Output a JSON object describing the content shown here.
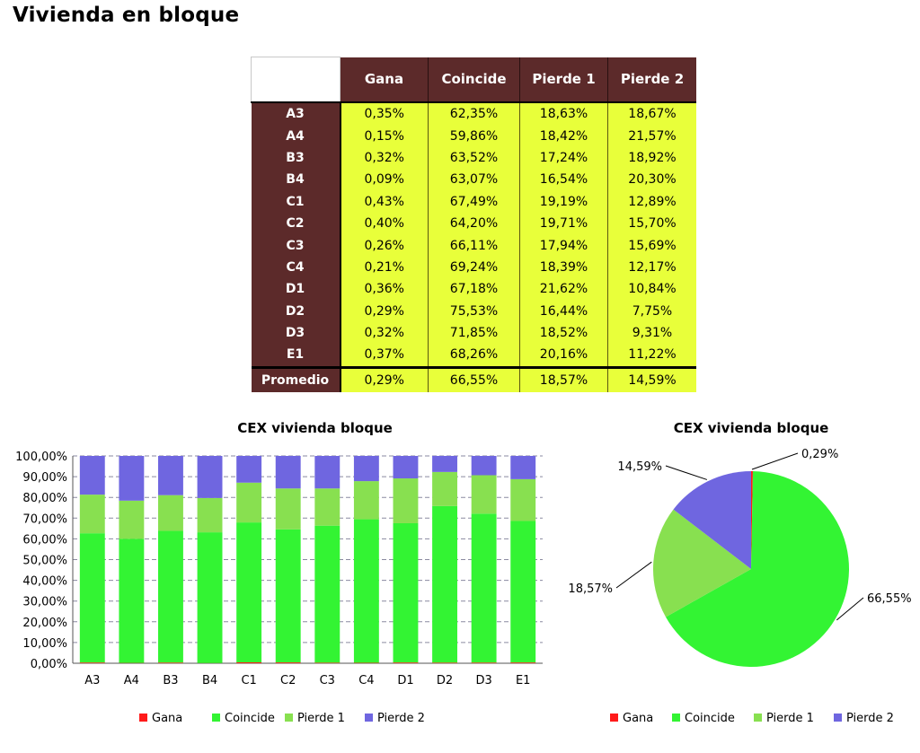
{
  "page_title": "Vivienda en bloque",
  "table": {
    "corner": "",
    "columns": [
      "Gana",
      "Coincide",
      "Pierde 1",
      "Pierde 2"
    ],
    "rows": [
      {
        "label": "A3",
        "cells": [
          "0,35%",
          "62,35%",
          "18,63%",
          "18,67%"
        ]
      },
      {
        "label": "A4",
        "cells": [
          "0,15%",
          "59,86%",
          "18,42%",
          "21,57%"
        ]
      },
      {
        "label": "B3",
        "cells": [
          "0,32%",
          "63,52%",
          "17,24%",
          "18,92%"
        ]
      },
      {
        "label": "B4",
        "cells": [
          "0,09%",
          "63,07%",
          "16,54%",
          "20,30%"
        ]
      },
      {
        "label": "C1",
        "cells": [
          "0,43%",
          "67,49%",
          "19,19%",
          "12,89%"
        ]
      },
      {
        "label": "C2",
        "cells": [
          "0,40%",
          "64,20%",
          "19,71%",
          "15,70%"
        ]
      },
      {
        "label": "C3",
        "cells": [
          "0,26%",
          "66,11%",
          "17,94%",
          "15,69%"
        ]
      },
      {
        "label": "C4",
        "cells": [
          "0,21%",
          "69,24%",
          "18,39%",
          "12,17%"
        ]
      },
      {
        "label": "D1",
        "cells": [
          "0,36%",
          "67,18%",
          "21,62%",
          "10,84%"
        ]
      },
      {
        "label": "D2",
        "cells": [
          "0,29%",
          "75,53%",
          "16,44%",
          "7,75%"
        ]
      },
      {
        "label": "D3",
        "cells": [
          "0,32%",
          "71,85%",
          "18,52%",
          "9,31%"
        ]
      },
      {
        "label": "E1",
        "cells": [
          "0,37%",
          "68,26%",
          "20,16%",
          "11,22%"
        ]
      }
    ],
    "footer": {
      "label": "Promedio",
      "cells": [
        "0,29%",
        "66,55%",
        "18,57%",
        "14,59%"
      ]
    }
  },
  "colors": {
    "Gana": "#ff1a1a",
    "Coincide": "#33f433",
    "Pierde 1": "#88e050",
    "Pierde 2": "#6f66e0",
    "header_bg": "#5c2a2a",
    "cell_bg": "#e8ff3a"
  },
  "chart_data": [
    {
      "type": "bar",
      "stacked": true,
      "percent": true,
      "title": "CEX vivienda bloque",
      "categories": [
        "A3",
        "A4",
        "B3",
        "B4",
        "C1",
        "C2",
        "C3",
        "C4",
        "D1",
        "D2",
        "D3",
        "E1"
      ],
      "series": [
        {
          "name": "Gana",
          "values": [
            0.35,
            0.15,
            0.32,
            0.09,
            0.43,
            0.4,
            0.26,
            0.21,
            0.36,
            0.29,
            0.32,
            0.37
          ]
        },
        {
          "name": "Coincide",
          "values": [
            62.35,
            59.86,
            63.52,
            63.07,
            67.49,
            64.2,
            66.11,
            69.24,
            67.18,
            75.53,
            71.85,
            68.26
          ]
        },
        {
          "name": "Pierde 1",
          "values": [
            18.63,
            18.42,
            17.24,
            16.54,
            19.19,
            19.71,
            17.94,
            18.39,
            21.62,
            16.44,
            18.52,
            20.16
          ]
        },
        {
          "name": "Pierde 2",
          "values": [
            18.67,
            21.57,
            18.92,
            20.3,
            12.89,
            15.7,
            15.69,
            12.17,
            10.84,
            7.75,
            9.31,
            11.22
          ]
        }
      ],
      "ylim": [
        0,
        100
      ],
      "yticks": [
        "0,00%",
        "10,00%",
        "20,00%",
        "30,00%",
        "40,00%",
        "50,00%",
        "60,00%",
        "70,00%",
        "80,00%",
        "90,00%",
        "100,00%"
      ],
      "grid": true,
      "legend": "bottom"
    },
    {
      "type": "pie",
      "title": "CEX vivienda bloque",
      "slices": [
        {
          "name": "Gana",
          "value": 0.29,
          "label": "0,29%"
        },
        {
          "name": "Coincide",
          "value": 66.55,
          "label": "66,55%"
        },
        {
          "name": "Pierde 1",
          "value": 18.57,
          "label": "18,57%"
        },
        {
          "name": "Pierde 2",
          "value": 14.59,
          "label": "14,59%"
        }
      ],
      "legend": "bottom"
    }
  ]
}
